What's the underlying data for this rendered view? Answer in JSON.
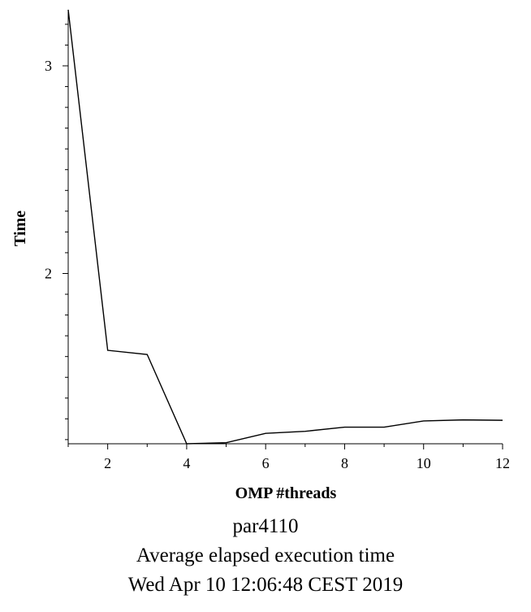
{
  "chart_data": {
    "type": "line",
    "xlabel": "OMP #threads",
    "ylabel": "Time",
    "x": [
      1,
      2,
      3,
      4,
      5,
      6,
      7,
      8,
      9,
      10,
      11,
      12
    ],
    "series": [
      {
        "values": [
          3.27,
          1.63,
          1.61,
          1.18,
          1.185,
          1.23,
          1.24,
          1.26,
          1.26,
          1.29,
          1.295,
          1.293
        ],
        "color": "#000000"
      }
    ],
    "xlim": [
      1,
      12
    ],
    "ylim": [
      1.18,
      3.27
    ],
    "xticks_major": [
      2,
      4,
      6,
      8,
      10,
      12
    ],
    "yticks_major": [
      2,
      3
    ],
    "grid": false,
    "legend": "none"
  },
  "captions": {
    "line1": "par4110",
    "line2": "Average elapsed execution time",
    "line3": "Wed Apr 10 12:06:48 CEST 2019"
  }
}
